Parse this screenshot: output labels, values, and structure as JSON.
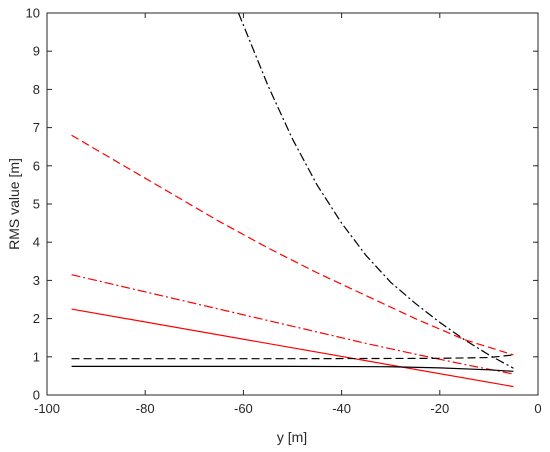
{
  "chart_data": {
    "type": "line",
    "title": "",
    "xlabel": "y [m]",
    "ylabel": "RMS value [m]",
    "xlim": [
      -100,
      0
    ],
    "ylim": [
      0,
      10
    ],
    "xticks": [
      -100,
      -80,
      -60,
      -40,
      -20,
      0
    ],
    "yticks": [
      0,
      1,
      2,
      3,
      4,
      5,
      6,
      7,
      8,
      9,
      10
    ],
    "xtick_labels": [
      "-100",
      "-80",
      "-60",
      "-40",
      "-20",
      "0"
    ],
    "ytick_labels": [
      "0",
      "1",
      "2",
      "3",
      "4",
      "5",
      "6",
      "7",
      "8",
      "9",
      "10"
    ],
    "grid": false,
    "box": true,
    "series": [
      {
        "color": "#000000",
        "style": "dashdot",
        "x": [
          -61,
          -55,
          -50,
          -45,
          -40,
          -35,
          -30,
          -25,
          -20,
          -15,
          -10,
          -5
        ],
        "y": [
          10.0,
          8.1,
          6.7,
          5.5,
          4.5,
          3.65,
          2.95,
          2.4,
          1.9,
          1.45,
          1.05,
          0.7
        ]
      },
      {
        "color": "#ff0000",
        "style": "dashed",
        "x": [
          -95,
          -85,
          -75,
          -65,
          -55,
          -45,
          -35,
          -25,
          -15,
          -5
        ],
        "y": [
          6.8,
          6.05,
          5.3,
          4.55,
          3.85,
          3.2,
          2.6,
          2.0,
          1.45,
          1.05
        ]
      },
      {
        "color": "#ff0000",
        "style": "dashdot",
        "x": [
          -95,
          -85,
          -75,
          -65,
          -55,
          -45,
          -35,
          -25,
          -15,
          -5
        ],
        "y": [
          3.15,
          2.85,
          2.55,
          2.25,
          1.95,
          1.65,
          1.35,
          1.07,
          0.8,
          0.55
        ]
      },
      {
        "color": "#ff0000",
        "style": "solid",
        "x": [
          -95,
          -5
        ],
        "y": [
          2.25,
          0.22
        ]
      },
      {
        "color": "#000000",
        "style": "dashed",
        "x": [
          -95,
          -50,
          -20,
          -10,
          -5
        ],
        "y": [
          0.95,
          0.95,
          0.96,
          0.98,
          1.05
        ]
      },
      {
        "color": "#000000",
        "style": "solid",
        "x": [
          -95,
          -50,
          -30,
          -20,
          -10,
          -5
        ],
        "y": [
          0.75,
          0.75,
          0.74,
          0.71,
          0.66,
          0.62
        ]
      }
    ]
  }
}
